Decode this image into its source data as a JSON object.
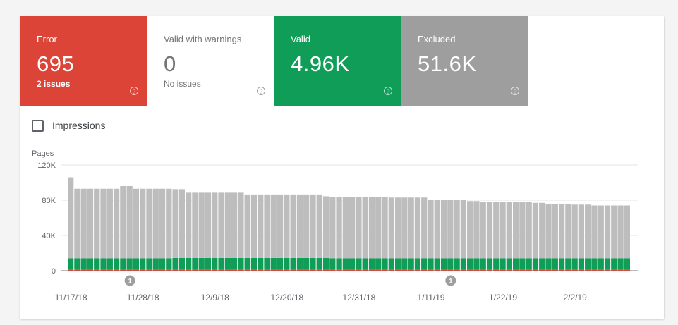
{
  "tiles": [
    {
      "label": "Error",
      "value": "695",
      "sub": "2 issues",
      "help": "?"
    },
    {
      "label": "Valid with warnings",
      "value": "0",
      "sub": "No issues",
      "help": "?"
    },
    {
      "label": "Valid",
      "value": "4.96K",
      "sub": "",
      "help": "?"
    },
    {
      "label": "Excluded",
      "value": "51.6K",
      "sub": "",
      "help": "?"
    }
  ],
  "impressions_label": "Impressions",
  "colors": {
    "error": "#db4437",
    "valid": "#0f9d58",
    "excluded": "#bdbdbd",
    "annotation": "#9e9e9e"
  },
  "chart_data": {
    "type": "bar",
    "stacked": true,
    "ylabel": "Pages",
    "ylim": [
      0,
      120000
    ],
    "yticks": [
      0,
      40000,
      80000,
      120000
    ],
    "ytick_labels": [
      "0",
      "40K",
      "80K",
      "120K"
    ],
    "xtick_labels": [
      "11/17/18",
      "11/28/18",
      "12/9/18",
      "12/20/18",
      "12/31/18",
      "1/11/19",
      "1/22/19",
      "2/2/19"
    ],
    "xtick_day_index": [
      0,
      11,
      22,
      33,
      44,
      55,
      66,
      77
    ],
    "grid": true,
    "series": [
      {
        "values": [
          1400,
          1400,
          1400,
          1400,
          1400,
          1400,
          1400,
          1400,
          1400,
          1400,
          1400,
          1400,
          1400,
          1400,
          1400,
          1400,
          1400,
          1400,
          1400,
          1400,
          1400,
          1400,
          1400,
          1400,
          1400,
          1400,
          1400,
          1400,
          1400,
          1400,
          1400,
          1400,
          1400,
          1400,
          1400,
          1400,
          1400,
          1400,
          1400,
          1400,
          1400,
          1400,
          1400,
          1400,
          1400,
          1400,
          1400,
          1400,
          1400,
          1400,
          1400,
          1400,
          1400,
          1400,
          1400,
          1400,
          1400,
          1400,
          1400,
          1400,
          1400,
          1400,
          1400,
          1400,
          1400,
          1400,
          1400,
          1400,
          1400,
          1400,
          1400,
          1400,
          1400,
          1400,
          1400,
          1400,
          1400,
          1400,
          1400,
          1400,
          1400,
          1400,
          1400,
          1400,
          1400,
          1400
        ]
      },
      {
        "values": [
          12600,
          12600,
          12600,
          12600,
          12600,
          12600,
          12600,
          12600,
          12600,
          12600,
          12600,
          12600,
          12600,
          12600,
          12600,
          12600,
          13100,
          13100,
          13100,
          13100,
          13100,
          13100,
          13100,
          13100,
          13100,
          13100,
          13100,
          13100,
          13100,
          13100,
          13100,
          13100,
          13100,
          13100,
          13100,
          13100,
          13100,
          13100,
          13100,
          13100,
          12600,
          12600,
          12600,
          12600,
          12600,
          12600,
          12600,
          12600,
          12600,
          12600,
          12600,
          12600,
          12600,
          12600,
          12600,
          12600,
          12600,
          12600,
          12600,
          12600,
          12600,
          12600,
          12600,
          12600,
          12600,
          12600,
          12600,
          12600,
          12600,
          12600,
          12600,
          12600,
          12600,
          12600,
          12600,
          12600,
          12600,
          12600,
          12600,
          12600,
          12600,
          12600,
          12600,
          12600,
          12600,
          12600
        ]
      },
      {
        "values": [
          92000,
          79000,
          79000,
          79000,
          79000,
          79000,
          79000,
          79000,
          82000,
          82000,
          79000,
          79000,
          79000,
          79000,
          79000,
          79000,
          78000,
          78000,
          74000,
          74000,
          74000,
          74000,
          74000,
          74000,
          74000,
          74000,
          74000,
          72000,
          72000,
          72000,
          72000,
          72000,
          72000,
          72000,
          72000,
          72000,
          72000,
          72000,
          72000,
          70000,
          70000,
          70000,
          70000,
          70000,
          70000,
          70000,
          70000,
          70000,
          70000,
          69000,
          69000,
          69000,
          69000,
          69000,
          69000,
          66000,
          66000,
          66000,
          66000,
          66000,
          66000,
          65000,
          65000,
          64000,
          64000,
          64000,
          64000,
          64000,
          64000,
          64000,
          64000,
          63000,
          63000,
          62000,
          62000,
          62000,
          62000,
          61000,
          61000,
          61000,
          60000,
          60000,
          60000,
          60000,
          60000,
          60000
        ]
      }
    ],
    "annotations": [
      {
        "label": "1",
        "day_index": 9
      },
      {
        "label": "1",
        "day_index": 58
      }
    ]
  }
}
